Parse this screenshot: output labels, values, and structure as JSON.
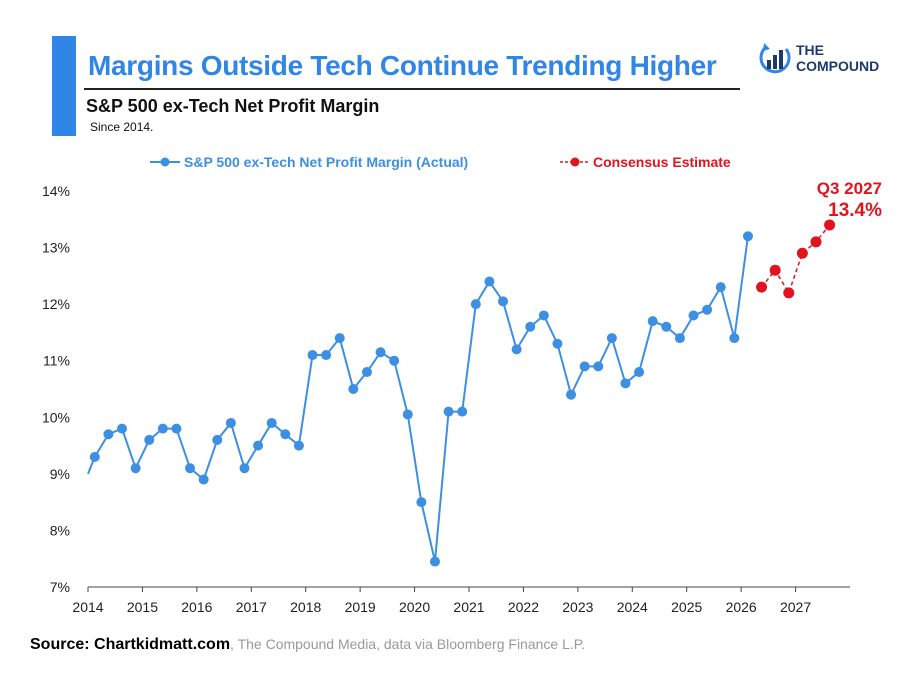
{
  "header": {
    "title": "Margins Outside Tech Continue Trending Higher",
    "subtitle": "S&P 500 ex-Tech Net Profit Margin",
    "note": "Since 2014."
  },
  "logo": {
    "line1": "THE",
    "line2": "COMPOUND",
    "icon": "bar-chart-circle-icon"
  },
  "source": {
    "bold": "Source: Chartkidmatt.com",
    "rest": ", The Compound Media, data via Bloomberg Finance L.P."
  },
  "colors": {
    "actual": "#3d8fe3",
    "estimate": "#e0141e",
    "title": "#2f86e6"
  },
  "chart_data": {
    "type": "line",
    "legend_position": "top",
    "grid": false,
    "xlim": [
      2014,
      2028
    ],
    "ylim": [
      7,
      14
    ],
    "y_ticks": [
      "7%",
      "8%",
      "9%",
      "10%",
      "11%",
      "12%",
      "13%",
      "14%"
    ],
    "x_ticks": [
      "2014",
      "2015",
      "2016",
      "2017",
      "2018",
      "2019",
      "2020",
      "2021",
      "2022",
      "2023",
      "2024",
      "2025",
      "2026",
      "2027"
    ],
    "series": [
      {
        "name": "S&P 500 ex-Tech Net Profit Margin (Actual)",
        "x": [
          2014.0,
          2014.125,
          2014.375,
          2014.625,
          2014.875,
          2015.125,
          2015.375,
          2015.625,
          2015.875,
          2016.125,
          2016.375,
          2016.625,
          2016.875,
          2017.125,
          2017.375,
          2017.625,
          2017.875,
          2018.125,
          2018.375,
          2018.625,
          2018.875,
          2019.125,
          2019.375,
          2019.625,
          2019.875,
          2020.125,
          2020.375,
          2020.625,
          2020.875,
          2021.125,
          2021.375,
          2021.625,
          2021.875,
          2022.125,
          2022.375,
          2022.625,
          2022.875,
          2023.125,
          2023.375,
          2023.625,
          2023.875,
          2024.125,
          2024.375,
          2024.625,
          2024.875,
          2025.125,
          2025.375,
          2025.625,
          2025.875,
          2026.125
        ],
        "values": [
          9.0,
          9.3,
          9.7,
          9.8,
          9.1,
          9.6,
          9.8,
          9.8,
          9.1,
          8.9,
          9.6,
          9.9,
          9.1,
          9.5,
          9.9,
          9.7,
          9.5,
          11.1,
          11.1,
          11.4,
          10.5,
          10.8,
          11.15,
          11.0,
          10.05,
          8.5,
          7.45,
          10.1,
          10.1,
          12.0,
          12.4,
          12.05,
          11.2,
          11.6,
          11.8,
          11.3,
          10.4,
          10.9,
          10.9,
          11.4,
          10.6,
          10.8,
          11.7,
          11.6,
          11.4,
          11.8,
          11.9,
          12.3,
          11.4,
          13.2
        ]
      },
      {
        "name": "Consensus Estimate",
        "x": [
          2026.375,
          2026.625,
          2026.875,
          2027.125,
          2027.375,
          2027.625
        ],
        "values": [
          12.3,
          12.6,
          12.2,
          12.9,
          13.1,
          13.4
        ]
      }
    ],
    "annotation": {
      "label": "Q3 2027",
      "value_label": "13.4%",
      "x": 2027.625,
      "y": 13.4
    }
  }
}
